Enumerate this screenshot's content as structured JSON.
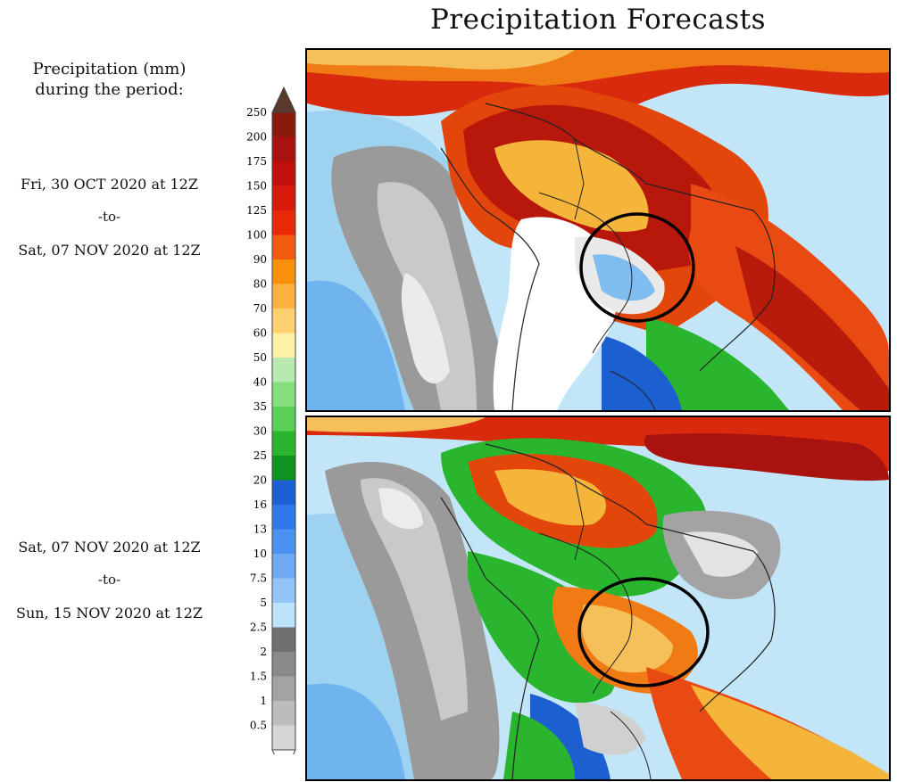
{
  "title": "Precipitation Forecasts",
  "legend": {
    "heading_line1": "Precipitation (mm)",
    "heading_line2": "during the period:",
    "levels": [
      "250",
      "200",
      "175",
      "150",
      "125",
      "100",
      "90",
      "80",
      "70",
      "60",
      "50",
      "40",
      "35",
      "30",
      "25",
      "20",
      "16",
      "13",
      "10",
      "7.5",
      "5",
      "2.5",
      "2",
      "1.5",
      "1",
      "0.5"
    ],
    "colors": [
      "#8a1a0a",
      "#a8120f",
      "#c0100c",
      "#d81a0c",
      "#e82a08",
      "#f25a10",
      "#f8900e",
      "#fbb23e",
      "#fdd070",
      "#fff1a8",
      "#b8eab0",
      "#86de7c",
      "#58d058",
      "#2ab52e",
      "#0e9320",
      "#1b5fd0",
      "#2f78e8",
      "#4c92f2",
      "#70aaf5",
      "#93c3f7",
      "#bde3fa",
      "#707070",
      "#8a8a8a",
      "#a3a3a3",
      "#bcbcbc",
      "#d5d5d5"
    ],
    "top_color": "#5a3a2c",
    "bottom_color": "#ffffff"
  },
  "period1": {
    "start": "Fri, 30 OCT 2020 at 12Z",
    "sep": "-to-",
    "end": "Sat, 07 NOV 2020 at 12Z"
  },
  "period2": {
    "start": "Sat, 07 NOV 2020 at 12Z",
    "sep": "-to-",
    "end": "Sun, 15 NOV 2020 at 12Z"
  },
  "maps": [
    {
      "name": "forecast-map-1",
      "region": "South America",
      "highlight": "circled area over central-west Brazil"
    },
    {
      "name": "forecast-map-2",
      "region": "South America",
      "highlight": "circled area over central-west Brazil"
    }
  ]
}
